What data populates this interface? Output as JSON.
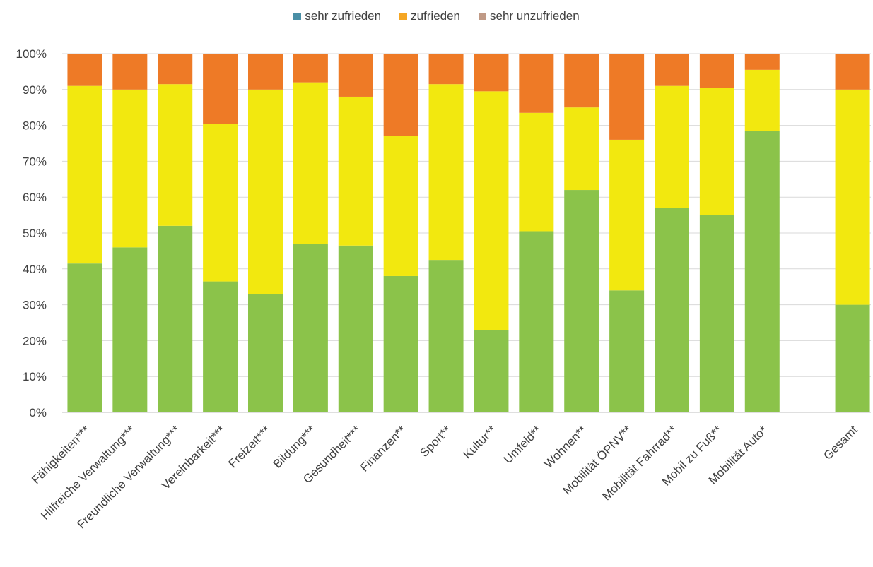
{
  "chart_data": {
    "type": "bar",
    "stacked": true,
    "percent": true,
    "categories": [
      "Fähigkeiten***",
      "Hilfreiche Verwaltung***",
      "Freundliche Verwaltung***",
      "Vereinbarkeit***",
      "Freizeit***",
      "Bildung***",
      "Gesundheit***",
      "Finanzen**",
      "Sport**",
      "Kultur**",
      "Umfeld**",
      "Wohnen**",
      "Mobilität ÖPNV**",
      "Mobilität Fahrrad**",
      "Mobil zu Fuß**",
      "Mobilität Auto*",
      "",
      "Gesamt"
    ],
    "series": [
      {
        "name": "sehr zufrieden",
        "color": "#8bc34a",
        "legend_color": "#4a8fa6",
        "values": [
          41.5,
          46,
          52,
          36.5,
          33,
          47,
          46.5,
          38,
          42.5,
          23,
          50.5,
          62,
          34,
          57,
          55,
          78.5,
          null,
          30
        ]
      },
      {
        "name": "zufrieden",
        "color": "#f2e80f",
        "legend_color": "#f5a623",
        "values": [
          49.5,
          44,
          39.5,
          44,
          57,
          45,
          41.5,
          39,
          49,
          66.5,
          33,
          23,
          42,
          34,
          35.5,
          17,
          null,
          60
        ]
      },
      {
        "name": "sehr unzufrieden",
        "color": "#ee7a26",
        "legend_color": "#c09a86",
        "values": [
          9,
          10,
          8.5,
          19.5,
          10,
          8,
          12,
          23,
          8.5,
          10.5,
          16.5,
          15,
          24,
          9,
          9.5,
          4.5,
          null,
          10
        ]
      }
    ],
    "yticks": [
      "0%",
      "10%",
      "20%",
      "30%",
      "40%",
      "50%",
      "60%",
      "70%",
      "80%",
      "90%",
      "100%"
    ],
    "ylim": [
      0,
      100
    ],
    "grid": true,
    "legend_position": "top-center"
  }
}
